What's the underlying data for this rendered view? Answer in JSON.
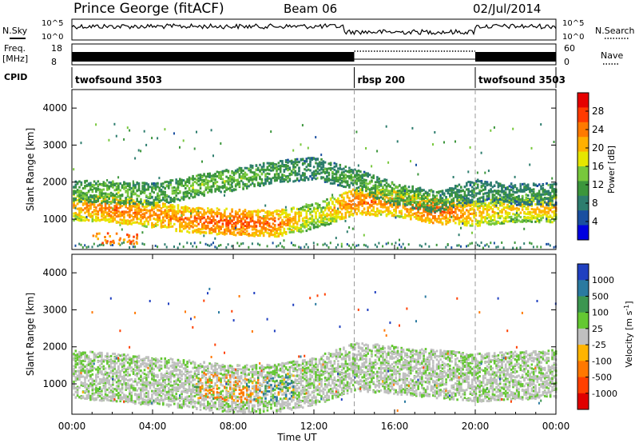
{
  "header": {
    "station": "Prince George (fitACF)",
    "beam": "Beam 06",
    "date": "02/Jul/2014"
  },
  "noise_panel": {
    "left_label": "N.Sky",
    "right_label": "N.Search",
    "y_ticks_left": [
      "10^5",
      "10^0"
    ],
    "y_ticks_right": [
      "10^5",
      "10^0"
    ]
  },
  "freq_panel": {
    "left_label_line1": "Freq.",
    "left_label_line2": "[MHz]",
    "right_label": "Nave",
    "y_ticks_left": [
      "18",
      "8"
    ],
    "y_ticks_right": [
      "60",
      "0"
    ]
  },
  "cpid_panel": {
    "label": "CPID",
    "segments": [
      {
        "name": "twofsound",
        "id": "3503",
        "start_hour": 0,
        "end_hour": 14
      },
      {
        "name": "rbsp",
        "id": "200",
        "start_hour": 14,
        "end_hour": 20
      },
      {
        "name": "twofsound",
        "id": "3503",
        "start_hour": 20,
        "end_hour": 24
      }
    ]
  },
  "x_axis": {
    "label": "Time UT",
    "ticks": [
      "00:00",
      "04:00",
      "08:00",
      "12:00",
      "16:00",
      "20:00",
      "00:00"
    ]
  },
  "power_colorbar": {
    "label": "Power [dB]",
    "ticks": [
      "28",
      "24",
      "20",
      "16",
      "12",
      "8",
      "4"
    ],
    "colors": [
      "#e60000",
      "#ff3a00",
      "#ff7a00",
      "#ffb000",
      "#e6e600",
      "#78c83c",
      "#3c963c",
      "#2d7d6e",
      "#1a4fa0",
      "#0000e0"
    ]
  },
  "velocity_colorbar": {
    "label": "Velocity [m s-1]",
    "ticks": [
      "1000",
      "500",
      "100",
      "25",
      "-25",
      "-100",
      "-500",
      "-1000"
    ],
    "colors": [
      "#2040c0",
      "#2a7aa0",
      "#3c9650",
      "#64c832",
      "#c0c0c0",
      "#ffb400",
      "#ff7800",
      "#ff4000",
      "#e00000"
    ]
  },
  "chart_data": [
    {
      "type": "heatmap",
      "title": "Power",
      "xlabel": "Time UT",
      "ylabel": "Slant Range [km]",
      "x_range_hours": [
        0,
        24
      ],
      "ylim": [
        180,
        4500
      ],
      "y_ticks": [
        1000,
        2000,
        3000,
        4000
      ],
      "colorbar_range_db": [
        0,
        32
      ],
      "echo_bands": [
        {
          "x": [
            0,
            2,
            4,
            6,
            8,
            10,
            12,
            14,
            16,
            18,
            20,
            22,
            24
          ],
          "center_km": [
            1350,
            1300,
            1150,
            1000,
            950,
            900,
            1100,
            1500,
            1450,
            1250,
            1200,
            1300,
            1300
          ],
          "power_db": [
            22,
            26,
            24,
            26,
            28,
            26,
            18,
            26,
            24,
            28,
            22,
            20,
            22
          ]
        },
        {
          "x": [
            0,
            2,
            4,
            6,
            8,
            10,
            12,
            14,
            16,
            18,
            20,
            22,
            24
          ],
          "center_km": [
            1800,
            1750,
            1700,
            1900,
            2100,
            2300,
            2400,
            2100,
            1700,
            1500,
            1800,
            1700,
            1700
          ],
          "power_db": [
            12,
            14,
            12,
            14,
            14,
            12,
            10,
            12,
            14,
            12,
            10,
            10,
            10
          ]
        }
      ]
    },
    {
      "type": "heatmap",
      "title": "Velocity",
      "xlabel": "Time UT",
      "ylabel": "Slant Range [km]",
      "x_range_hours": [
        0,
        24
      ],
      "ylim": [
        180,
        4500
      ],
      "y_ticks": [
        1000,
        2000,
        3000,
        4000
      ],
      "colorbar_range_ms": [
        -1000,
        1000
      ],
      "echo_bands": [
        {
          "x": [
            0,
            4,
            8,
            10,
            12,
            14,
            16,
            20,
            24
          ],
          "center_km": [
            1300,
            1100,
            900,
            900,
            1100,
            1500,
            1400,
            1200,
            1300
          ],
          "velocity_ms": [
            0,
            0,
            -200,
            100,
            0,
            0,
            0,
            0,
            0
          ]
        }
      ]
    }
  ]
}
